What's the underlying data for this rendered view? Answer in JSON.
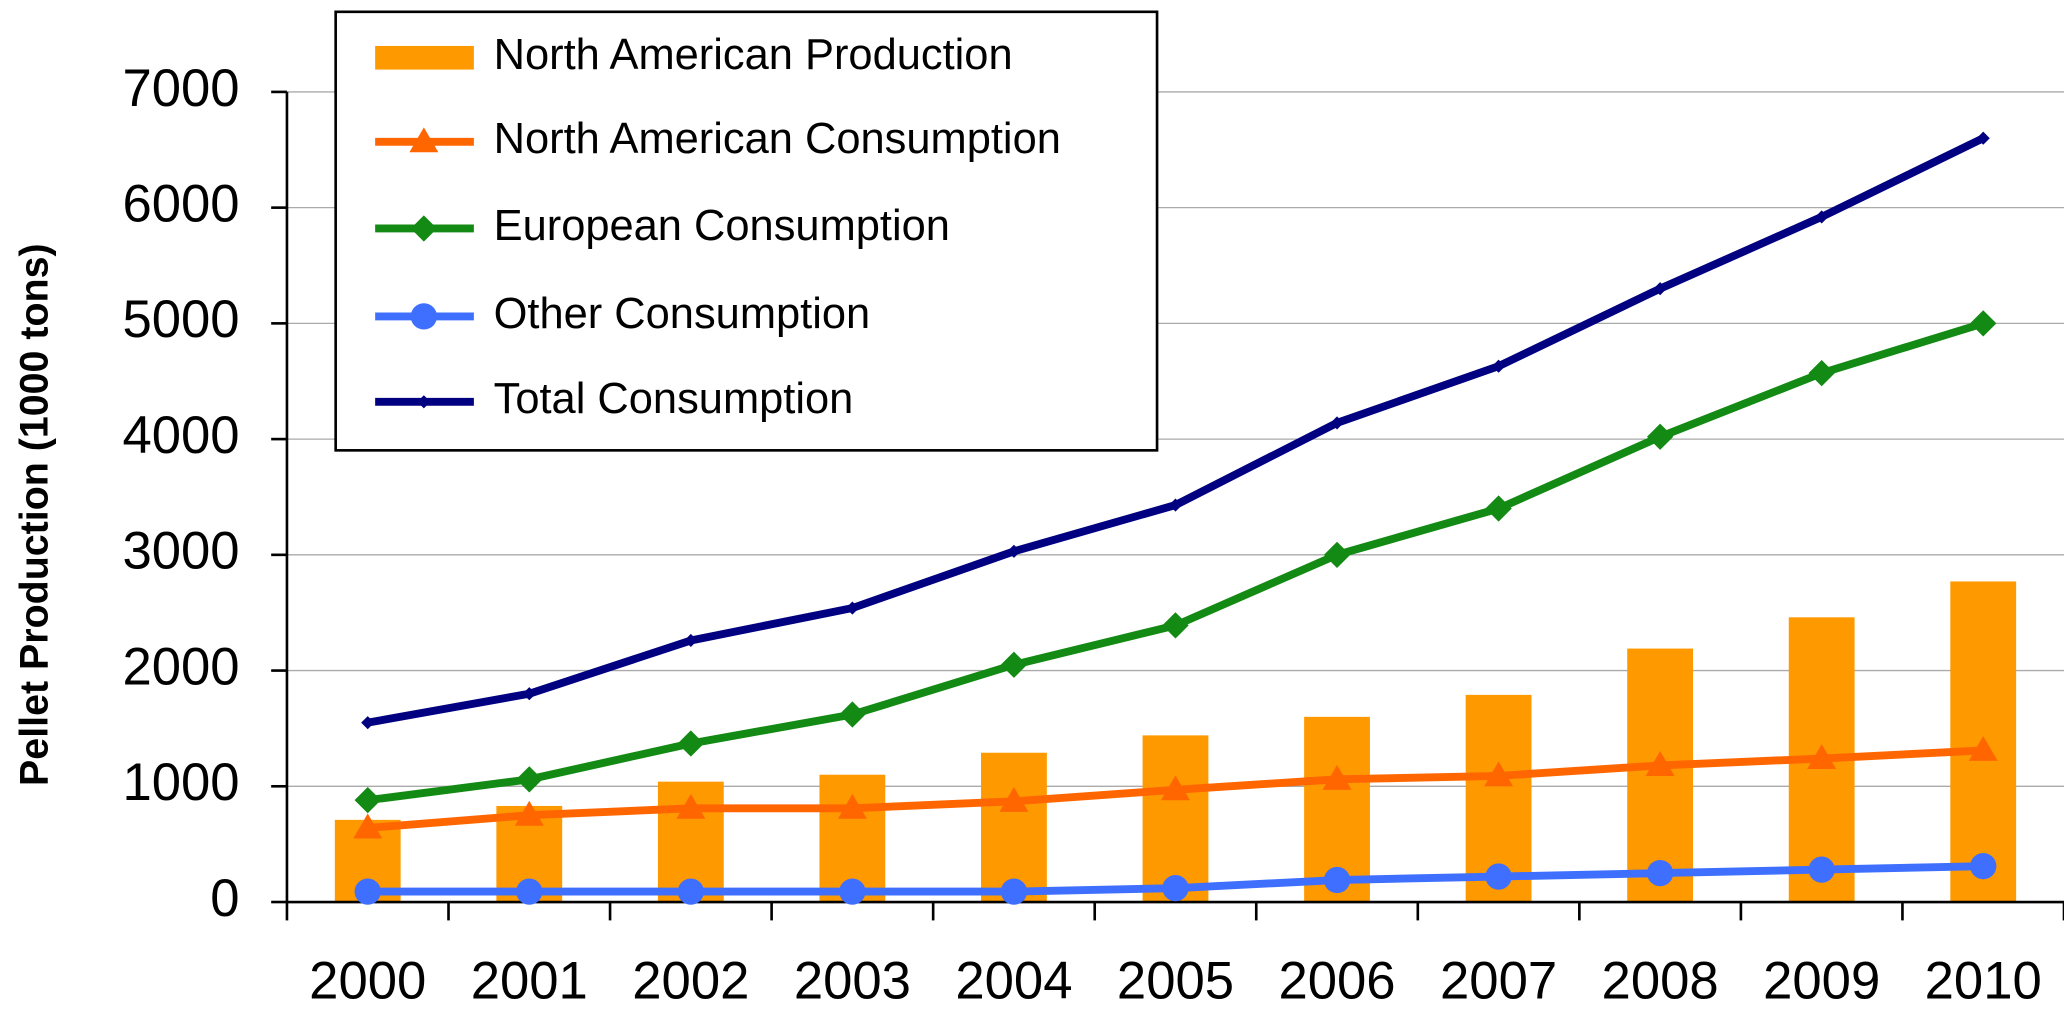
{
  "chart_data": {
    "type": "bar-line",
    "ylabel": "Pellet Production (1000 tons)",
    "categories": [
      "2000",
      "2001",
      "2002",
      "2003",
      "2004",
      "2005",
      "2006",
      "2007",
      "2008",
      "2009",
      "2010"
    ],
    "ylim": [
      0,
      7000
    ],
    "yticks": [
      0,
      1000,
      2000,
      3000,
      4000,
      5000,
      6000,
      7000
    ],
    "grid": true,
    "legend": "top-left",
    "series": [
      {
        "name": "North American Production",
        "type": "bar",
        "color": "#ff9900",
        "values": [
          710,
          830,
          1040,
          1100,
          1290,
          1440,
          1600,
          1790,
          2190,
          2460,
          2770
        ]
      },
      {
        "name": "North American Consumption",
        "type": "line",
        "marker": "triangle",
        "color": "#ff6600",
        "values": [
          640,
          750,
          810,
          810,
          870,
          970,
          1060,
          1090,
          1180,
          1240,
          1310
        ]
      },
      {
        "name": "European Consumption",
        "type": "line",
        "marker": "diamond",
        "color": "#138a13",
        "values": [
          880,
          1060,
          1370,
          1620,
          2050,
          2390,
          3000,
          3400,
          4020,
          4570,
          5000
        ]
      },
      {
        "name": "Other Consumption",
        "type": "line",
        "marker": "circle",
        "color": "#3f6fff",
        "values": [
          90,
          90,
          90,
          90,
          90,
          120,
          190,
          220,
          250,
          280,
          310
        ]
      },
      {
        "name": "Total Consumption",
        "type": "line",
        "marker": "small-diamond",
        "color": "#000080",
        "values": [
          1550,
          1800,
          2260,
          2540,
          3030,
          3430,
          4140,
          4630,
          5300,
          5920,
          6600
        ]
      }
    ]
  }
}
